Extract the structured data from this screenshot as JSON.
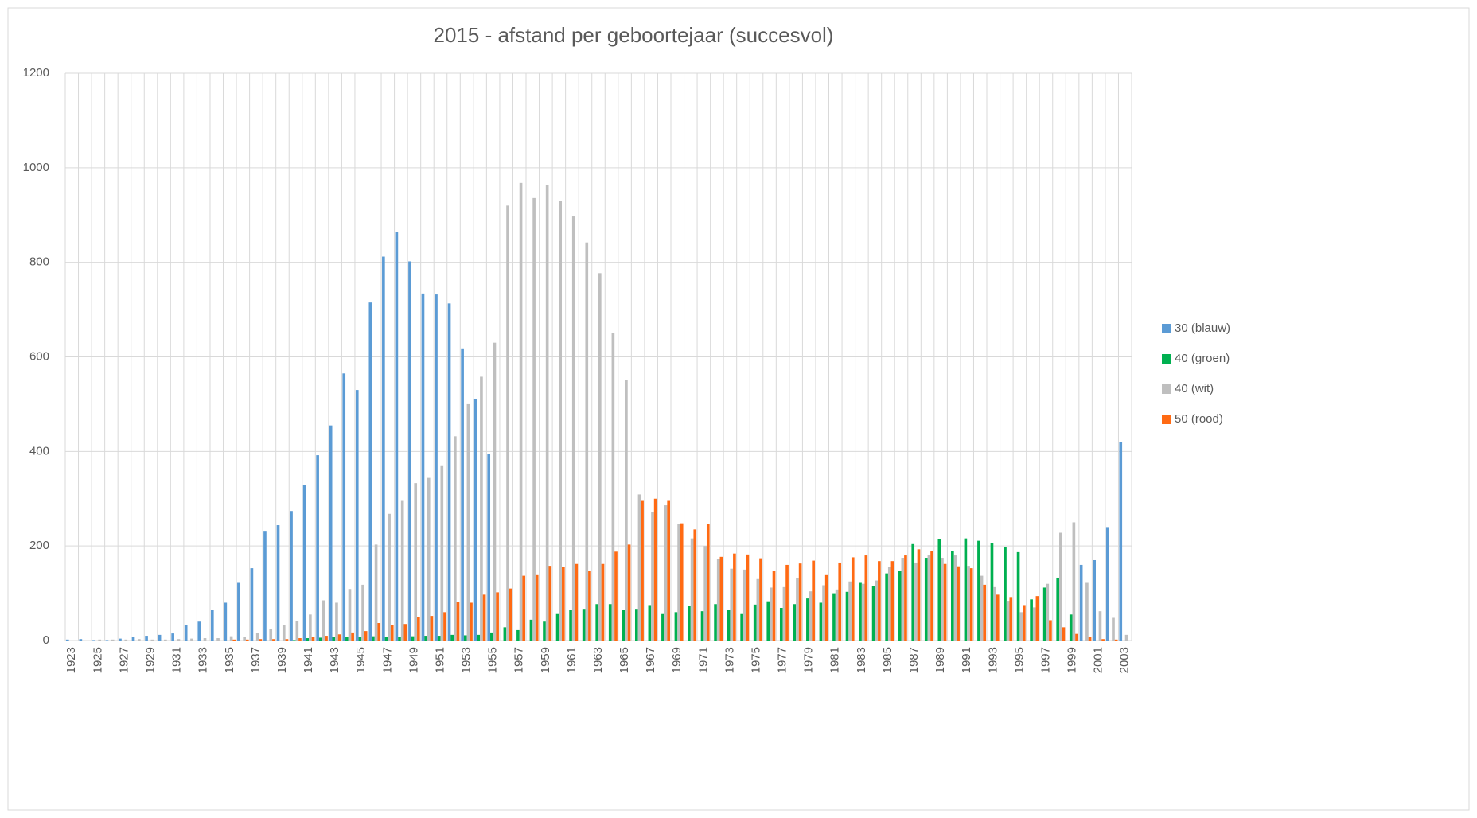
{
  "chart_data": {
    "type": "bar",
    "title": "2015 - afstand per geboortejaar (succesvol)",
    "categories": [
      "1923",
      null,
      "1925",
      null,
      "1927",
      null,
      "1929",
      null,
      "1931",
      null,
      "1933",
      null,
      "1935",
      null,
      "1937",
      null,
      "1939",
      null,
      "1941",
      null,
      "1943",
      null,
      "1945",
      null,
      "1947",
      null,
      "1949",
      null,
      "1951",
      null,
      "1953",
      null,
      "1955",
      null,
      "1957",
      null,
      "1959",
      null,
      "1961",
      null,
      "1963",
      null,
      "1965",
      null,
      "1967",
      null,
      "1969",
      null,
      "1971",
      null,
      "1973",
      null,
      "1975",
      null,
      "1977",
      null,
      "1979",
      null,
      "1981",
      null,
      "1983",
      null,
      "1985",
      null,
      "1987",
      null,
      "1989",
      null,
      "1991",
      null,
      "1993",
      null,
      "1995",
      null,
      "1997",
      null,
      "1999",
      null,
      "2001",
      null,
      "2003"
    ],
    "series": [
      {
        "name": "30 (blauw)",
        "color": "#5b9bd5",
        "values": [
          2,
          3,
          1,
          1,
          4,
          8,
          10,
          12,
          15,
          33,
          40,
          65,
          80,
          122,
          153,
          232,
          244,
          274,
          329,
          392,
          455,
          565,
          530,
          715,
          812,
          865,
          802,
          734,
          732,
          713,
          618,
          511,
          395,
          0,
          0,
          0,
          0,
          0,
          0,
          0,
          0,
          0,
          0,
          0,
          0,
          0,
          0,
          0,
          0,
          0,
          0,
          0,
          0,
          0,
          0,
          0,
          0,
          0,
          0,
          0,
          0,
          0,
          0,
          0,
          0,
          0,
          0,
          0,
          0,
          0,
          0,
          0,
          0,
          0,
          0,
          0,
          0,
          160,
          170,
          240,
          420
        ]
      },
      {
        "name": "40 (groen)",
        "color": "#00b050",
        "values": [
          0,
          0,
          0,
          0,
          0,
          0,
          0,
          0,
          0,
          0,
          0,
          0,
          0,
          0,
          0,
          0,
          0,
          1,
          5,
          6,
          8,
          8,
          8,
          9,
          8,
          8,
          9,
          10,
          10,
          12,
          11,
          12,
          17,
          28,
          22,
          44,
          40,
          56,
          64,
          67,
          77,
          77,
          65,
          67,
          75,
          56,
          60,
          73,
          62,
          77,
          65,
          56,
          76,
          83,
          69,
          77,
          89,
          80,
          100,
          103,
          122,
          116,
          142,
          148,
          204,
          175,
          215,
          190,
          216,
          211,
          206,
          198,
          187,
          87,
          112,
          133,
          55,
          0,
          0,
          0,
          0
        ]
      },
      {
        "name": "40 (wit)",
        "color": "#bfbfbf",
        "values": [
          0,
          0,
          2,
          2,
          2,
          3,
          2,
          2,
          3,
          4,
          5,
          5,
          9,
          8,
          16,
          24,
          33,
          42,
          55,
          85,
          80,
          109,
          118,
          203,
          268,
          297,
          333,
          344,
          369,
          432,
          500,
          558,
          630,
          920,
          968,
          936,
          963,
          930,
          897,
          842,
          777,
          650,
          552,
          309,
          272,
          286,
          247,
          216,
          200,
          172,
          152,
          150,
          130,
          112,
          113,
          133,
          104,
          117,
          108,
          125,
          120,
          127,
          155,
          175,
          165,
          180,
          175,
          180,
          158,
          137,
          113,
          84,
          60,
          70,
          120,
          228,
          250,
          122,
          62,
          48,
          12
        ]
      },
      {
        "name": "50 (rood)",
        "color": "#ff6a13",
        "values": [
          0,
          0,
          0,
          0,
          0,
          0,
          0,
          0,
          0,
          0,
          0,
          0,
          2,
          2,
          3,
          3,
          3,
          5,
          8,
          10,
          13,
          17,
          20,
          37,
          32,
          35,
          50,
          52,
          60,
          82,
          80,
          97,
          102,
          110,
          137,
          140,
          158,
          155,
          162,
          148,
          162,
          188,
          203,
          297,
          300,
          297,
          248,
          235,
          246,
          177,
          184,
          182,
          174,
          148,
          160,
          163,
          169,
          140,
          165,
          176,
          180,
          168,
          168,
          180,
          193,
          190,
          162,
          157,
          153,
          118,
          97,
          92,
          75,
          94,
          43,
          28,
          14,
          7,
          3,
          2,
          0
        ]
      }
    ],
    "ylim": [
      0,
      1200
    ],
    "yticks": [
      0,
      200,
      400,
      600,
      800,
      1000,
      1200
    ],
    "grid": true,
    "legend": "right"
  }
}
